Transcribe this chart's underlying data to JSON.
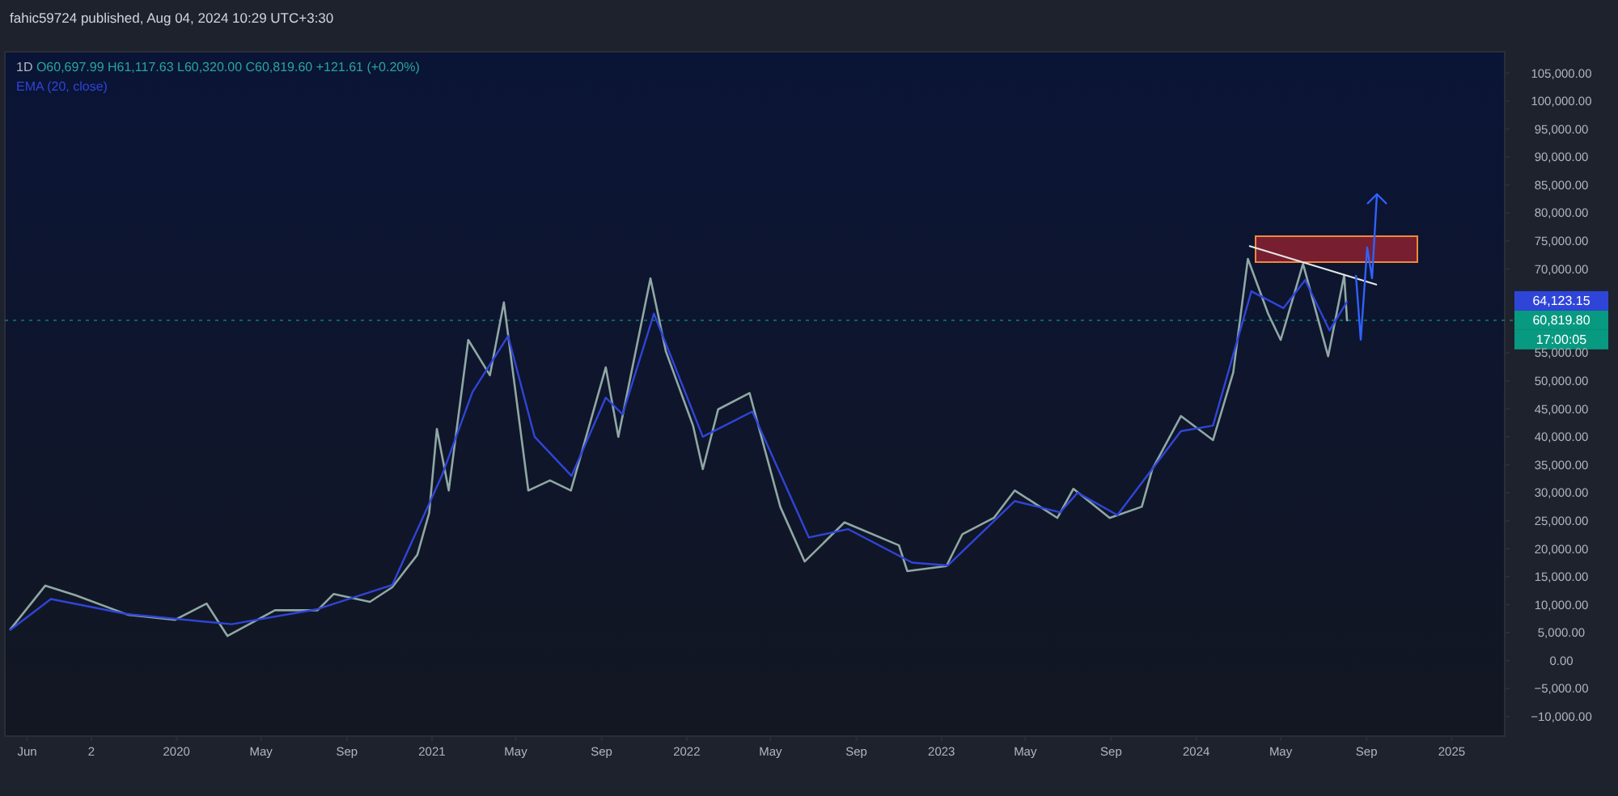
{
  "chart_data": {
    "type": "line",
    "legend": "top left",
    "xlim": [
      "2019-04-30",
      "2025-03-18"
    ],
    "ylim": [
      -13500,
      108800
    ],
    "xticks": [
      {
        "value": "2019-06-01",
        "label": "Jun"
      },
      {
        "value": "2019-09-01",
        "label": "2"
      },
      {
        "value": "2020-01-01",
        "label": "2020"
      },
      {
        "value": "2020-05-01",
        "label": "May"
      },
      {
        "value": "2020-09-01",
        "label": "Sep"
      },
      {
        "value": "2021-01-01",
        "label": "2021"
      },
      {
        "value": "2021-05-01",
        "label": "May"
      },
      {
        "value": "2021-09-01",
        "label": "Sep"
      },
      {
        "value": "2022-01-01",
        "label": "2022"
      },
      {
        "value": "2022-05-01",
        "label": "May"
      },
      {
        "value": "2022-09-01",
        "label": "Sep"
      },
      {
        "value": "2023-01-01",
        "label": "2023"
      },
      {
        "value": "2023-05-01",
        "label": "May"
      },
      {
        "value": "2023-09-01",
        "label": "Sep"
      },
      {
        "value": "2024-01-01",
        "label": "2024"
      },
      {
        "value": "2024-05-01",
        "label": "May"
      },
      {
        "value": "2024-09-01",
        "label": "Sep"
      },
      {
        "value": "2025-01-01",
        "label": "2025"
      }
    ],
    "yticks": [
      {
        "value": -10000,
        "label": "−10,000.00"
      },
      {
        "value": -5000,
        "label": "−5,000.00"
      },
      {
        "value": 0,
        "label": "0.00"
      },
      {
        "value": 5000,
        "label": "5,000.00"
      },
      {
        "value": 10000,
        "label": "10,000.00"
      },
      {
        "value": 15000,
        "label": "15,000.00"
      },
      {
        "value": 20000,
        "label": "20,000.00"
      },
      {
        "value": 25000,
        "label": "25,000.00"
      },
      {
        "value": 30000,
        "label": "30,000.00"
      },
      {
        "value": 35000,
        "label": "35,000.00"
      },
      {
        "value": 40000,
        "label": "40,000.00"
      },
      {
        "value": 45000,
        "label": "45,000.00"
      },
      {
        "value": 50000,
        "label": "50,000.00"
      },
      {
        "value": 55000,
        "label": "55,000.00"
      },
      {
        "value": 70000,
        "label": "70,000.00"
      },
      {
        "value": 75000,
        "label": "75,000.00"
      },
      {
        "value": 80000,
        "label": "80,000.00"
      },
      {
        "value": 85000,
        "label": "85,000.00"
      },
      {
        "value": 90000,
        "label": "90,000.00"
      },
      {
        "value": 95000,
        "label": "95,000.00"
      },
      {
        "value": 100000,
        "label": "100,000.00"
      },
      {
        "value": 105000,
        "label": "105,000.00"
      }
    ],
    "series": [
      {
        "color": "#8fa8a4",
        "x": [
          "2019-05-08",
          "2019-06-27",
          "2019-08-09",
          "2019-10-23",
          "2019-12-30",
          "2020-02-13",
          "2020-03-14",
          "2020-05-21",
          "2020-07-21",
          "2020-08-13",
          "2020-10-04",
          "2020-11-05",
          "2020-12-11",
          "2020-12-28",
          "2021-01-08",
          "2021-01-25",
          "2021-02-22",
          "2021-03-25",
          "2021-04-14",
          "2021-05-19",
          "2021-06-19",
          "2021-07-19",
          "2021-09-07",
          "2021-09-25",
          "2021-11-10",
          "2021-12-02",
          "2022-01-10",
          "2022-01-24",
          "2022-02-15",
          "2022-04-01",
          "2022-05-15",
          "2022-06-19",
          "2022-08-15",
          "2022-11-01",
          "2022-11-13",
          "2023-01-08",
          "2023-01-31",
          "2023-03-17",
          "2023-04-16",
          "2023-06-16",
          "2023-07-09",
          "2023-08-30",
          "2023-10-15",
          "2023-10-30",
          "2023-12-10",
          "2024-01-25",
          "2024-02-23",
          "2024-03-15",
          "2024-04-13",
          "2024-05-01",
          "2024-06-02",
          "2024-07-08",
          "2024-07-31",
          "2024-08-04"
        ],
        "values": [
          5600,
          13400,
          11700,
          8200,
          7300,
          10200,
          4400,
          9000,
          9000,
          11900,
          10500,
          13100,
          18900,
          26400,
          41400,
          30400,
          57300,
          51000,
          64000,
          30400,
          32200,
          30400,
          52400,
          40000,
          68300,
          55300,
          42000,
          34200,
          44900,
          47800,
          27500,
          17700,
          24700,
          20600,
          16000,
          16900,
          22600,
          25500,
          30400,
          25500,
          30700,
          25500,
          27500,
          34200,
          43700,
          39400,
          51500,
          71800,
          62000,
          57300,
          70900,
          54400,
          68900,
          60800
        ]
      },
      {
        "name": "EMA (20, close)",
        "color": "#2f45d8",
        "x": [
          "2019-05-08",
          "2019-07-05",
          "2019-10-23",
          "2020-03-20",
          "2020-07-21",
          "2020-11-05",
          "2021-01-15",
          "2021-02-28",
          "2021-04-20",
          "2021-05-28",
          "2021-07-20",
          "2021-09-07",
          "2021-10-01",
          "2021-11-15",
          "2022-01-24",
          "2022-04-05",
          "2022-06-25",
          "2022-08-20",
          "2022-11-20",
          "2023-01-10",
          "2023-04-16",
          "2023-06-20",
          "2023-07-15",
          "2023-09-10",
          "2023-12-10",
          "2024-01-25",
          "2024-03-20",
          "2024-05-05",
          "2024-06-05",
          "2024-07-10",
          "2024-08-04"
        ],
        "values": [
          5500,
          11000,
          8300,
          6500,
          9200,
          13500,
          33000,
          48000,
          58000,
          40000,
          33000,
          47000,
          44000,
          62000,
          40000,
          44500,
          22000,
          23500,
          17500,
          17000,
          28500,
          26500,
          30000,
          26000,
          41000,
          42000,
          66000,
          63000,
          68000,
          59000,
          64100
        ]
      }
    ],
    "ref_lines": [
      {
        "axis": "y",
        "value": 60819.8,
        "label": "60,819.80",
        "color": "#089981",
        "line_style": "dotted"
      }
    ],
    "annotations": [
      "fahic59724 published, Aug 04, 2024 10:29 UTC+3:30",
      "1D",
      "O60,697.99 H61,117.63 L60,320.00 C60,819.60 +121.61 (+0.20%)",
      "64,123.15",
      "17:00:05"
    ]
  }
}
